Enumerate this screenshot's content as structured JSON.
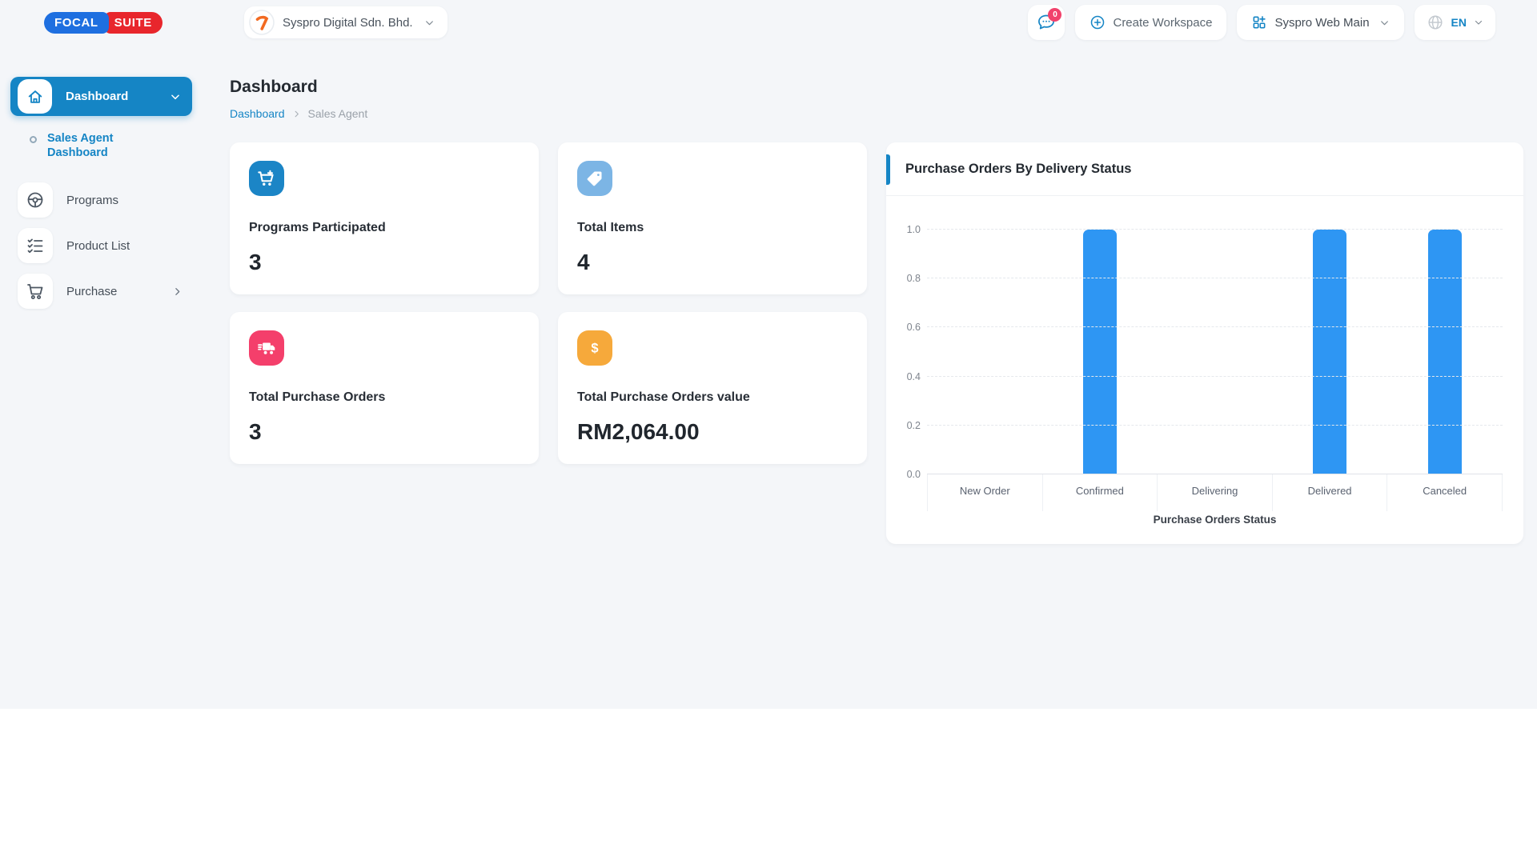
{
  "header": {
    "logo": {
      "first": "FOCAL",
      "second": "SUITE"
    },
    "company": {
      "name": "Syspro Digital Sdn. Bhd."
    },
    "notifications": {
      "badge": "0"
    },
    "create_workspace": {
      "label": "Create Workspace"
    },
    "workspace": {
      "name": "Syspro Web Main"
    },
    "language": {
      "code": "EN"
    }
  },
  "sidebar": {
    "items": [
      {
        "label": "Dashboard",
        "active": true
      },
      {
        "label": "Sales Agent Dashboard",
        "active": true
      },
      {
        "label": "Programs",
        "active": false
      },
      {
        "label": "Product List",
        "active": false
      },
      {
        "label": "Purchase",
        "active": false
      }
    ]
  },
  "main": {
    "page_title": "Dashboard",
    "breadcrumb": {
      "items": [
        "Dashboard",
        "Sales Agent"
      ]
    },
    "stat_cards": [
      {
        "label": "Programs Participated",
        "value": "3",
        "icon": "cart-plus-icon",
        "color": "#1b85c6"
      },
      {
        "label": "Total Items",
        "value": "4",
        "icon": "tag-icon",
        "color": "#7cb5e5"
      },
      {
        "label": "Total Purchase Orders",
        "value": "3",
        "icon": "delivery-truck-icon",
        "color": "#f43f6b"
      },
      {
        "label": "Total Purchase Orders value",
        "value": "RM2,064.00",
        "icon": "dollar-icon",
        "color": "#f6a93b"
      }
    ]
  },
  "chart_data": {
    "type": "bar",
    "title": "Purchase Orders By Delivery Status",
    "categories": [
      "New Order",
      "Confirmed",
      "Delivering",
      "Delivered",
      "Canceled"
    ],
    "values": [
      0,
      1,
      0,
      1,
      1
    ],
    "xlabel": "Purchase Orders Status",
    "ylabel": "",
    "ylim": [
      0,
      1
    ],
    "yticks": [
      0.0,
      0.2,
      0.4,
      0.6,
      0.8,
      1.0
    ],
    "bar_color": "#2e96f3",
    "grid": "horizontal-dashed",
    "legend": "none"
  },
  "colors": {
    "primary_blue": "#1585c5",
    "bar_blue": "#2e96f3",
    "badge_red": "#f1416c",
    "logo_blue": "#1e6fe0",
    "logo_red": "#e8262c",
    "page_bg": "#f4f6f9"
  }
}
